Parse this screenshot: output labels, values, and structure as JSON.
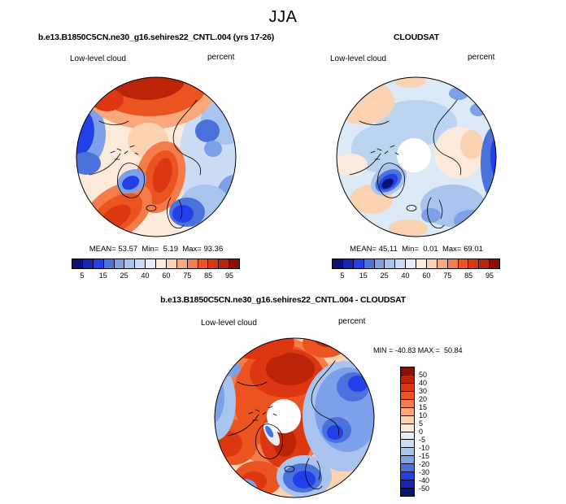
{
  "season": "JJA",
  "panels": {
    "model": {
      "title": "b.e13.B1850C5CN.ne30_g16.sehires22_CNTL.004 (yrs 17-26)",
      "variable": "Low-level cloud",
      "units": "percent",
      "stats_line": "MEAN= 53.57  Min=  5.19  Max= 93.36"
    },
    "obs": {
      "title": "CLOUDSAT",
      "variable": "Low-level cloud",
      "units": "percent",
      "stats_line": "MEAN= 45.11  Min=  0.01  Max= 69.01"
    },
    "difference": {
      "title": "b.e13.B1850C5CN.ne30_g16.sehires22_CNTL.004 - CLOUDSAT",
      "variable": "Low-level cloud",
      "units": "percent",
      "minmax_line": "MIN = -40.83 MAX =  50.84"
    }
  },
  "colorbars": {
    "palette_blue_to_red": [
      "#0a1273",
      "#1626b2",
      "#2140e8",
      "#4a71dc",
      "#7da0e8",
      "#a9c4ee",
      "#ccdcf4",
      "#e7eef9",
      "#fdeada",
      "#fbd2b2",
      "#f9a87e",
      "#f37c4a",
      "#eb5420",
      "#dc3710",
      "#bc2408",
      "#8c0e05"
    ],
    "horizontal_tick_labels": [
      "5",
      "15",
      "25",
      "40",
      "60",
      "75",
      "85",
      "95"
    ],
    "vertical_tick_labels_top_to_bottom": [
      "50",
      "40",
      "30",
      "20",
      "15",
      "10",
      "5",
      "0",
      "-5",
      "-10",
      "-15",
      "-20",
      "-30",
      "-40",
      "-50"
    ]
  },
  "chart_data": [
    {
      "type": "heatmap",
      "chart_kind": "polar_stereographic_filled_contour_map",
      "region": "Northern Hemisphere polar cap",
      "season": "JJA",
      "title": "b.e13.B1850C5CN.ne30_g16.sehires22_CNTL.004 (yrs 17-26)",
      "variable": "Low-level cloud",
      "units": "percent",
      "stats": {
        "mean": 53.57,
        "min": 5.19,
        "max": 93.36
      },
      "contour_levels": [
        5,
        10,
        15,
        20,
        25,
        30,
        40,
        50,
        60,
        70,
        75,
        80,
        85,
        90,
        95
      ],
      "labeled_levels": [
        5,
        15,
        25,
        40,
        60,
        75,
        85,
        95
      ],
      "palette": "16 discrete colors, dark blue (low) through white to dark red (high)",
      "legend_position": "bottom"
    },
    {
      "type": "heatmap",
      "chart_kind": "polar_stereographic_filled_contour_map",
      "region": "Northern Hemisphere polar cap",
      "season": "JJA",
      "title": "CLOUDSAT",
      "variable": "Low-level cloud",
      "units": "percent",
      "stats": {
        "mean": 45.11,
        "min": 0.01,
        "max": 69.01
      },
      "contour_levels": [
        5,
        10,
        15,
        20,
        25,
        30,
        40,
        50,
        60,
        70,
        75,
        80,
        85,
        90,
        95
      ],
      "labeled_levels": [
        5,
        15,
        25,
        40,
        60,
        75,
        85,
        95
      ],
      "palette": "16 discrete colors, dark blue (low) through white to dark red (high)",
      "notes": "white disk at the pole indicates missing satellite data",
      "legend_position": "bottom"
    },
    {
      "type": "heatmap",
      "chart_kind": "polar_stereographic_filled_contour_map",
      "region": "Northern Hemisphere polar cap",
      "season": "JJA",
      "title": "b.e13.B1850C5CN.ne30_g16.sehires22_CNTL.004 - CLOUDSAT",
      "variable": "Low-level cloud",
      "units": "percent",
      "stats": {
        "min": -40.83,
        "max": 50.84
      },
      "contour_levels": [
        -50,
        -40,
        -30,
        -20,
        -15,
        -10,
        -5,
        0,
        5,
        10,
        15,
        20,
        30,
        40,
        50
      ],
      "palette": "16 discrete colors, blue negative through white to red positive",
      "notes": "white disk at the pole indicates missing data in observations",
      "legend_position": "right"
    }
  ]
}
